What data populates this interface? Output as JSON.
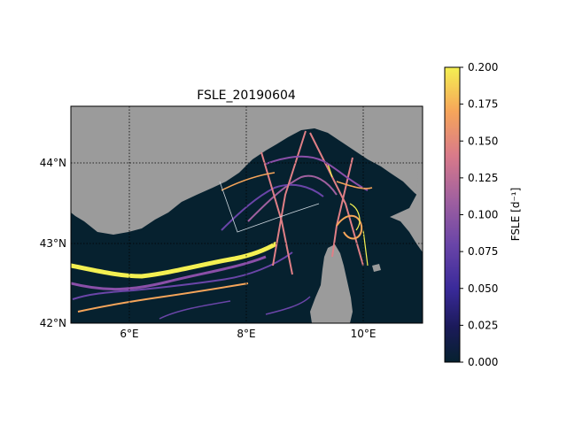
{
  "title": "FSLE_20190604",
  "map": {
    "lon_range": [
      5.0,
      11.0
    ],
    "lat_range": [
      42.0,
      44.7
    ],
    "lon_ticks": [
      {
        "value": 6,
        "label": "6°E"
      },
      {
        "value": 8,
        "label": "8°E"
      },
      {
        "value": 10,
        "label": "10°E"
      }
    ],
    "lat_ticks": [
      {
        "value": 42,
        "label": "42°N"
      },
      {
        "value": 43,
        "label": "43°N"
      },
      {
        "value": 44,
        "label": "44°N"
      }
    ],
    "gridlines": "dotted",
    "land_color": "#9b9b9b",
    "sea_color": "#06212f"
  },
  "colorbar": {
    "label": "FSLE [d⁻¹]",
    "colormap": "plasma-like (dark navy to yellow)",
    "range": [
      0.0,
      0.2
    ],
    "ticks": [
      "0.000",
      "0.025",
      "0.050",
      "0.075",
      "0.100",
      "0.125",
      "0.150",
      "0.175",
      "0.200"
    ]
  }
}
